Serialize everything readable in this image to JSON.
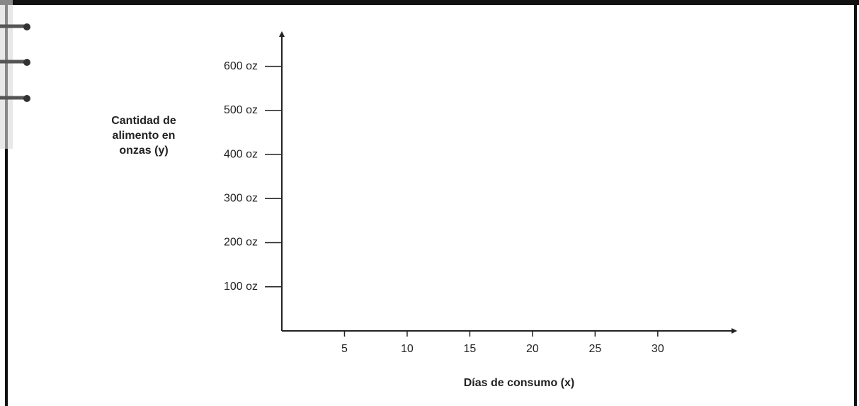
{
  "chart_data": {
    "type": "line",
    "y_label": "Cantidad de alimento en onzas (y)",
    "x_label": "Días de consumo (x)",
    "xlim": [
      0,
      36
    ],
    "xticks": [
      5,
      10,
      15,
      20,
      25,
      30
    ],
    "ylim": [
      0,
      670
    ],
    "yticks": [
      {
        "value": 100,
        "label": "100 oz"
      },
      {
        "value": 200,
        "label": "200 oz"
      },
      {
        "value": 300,
        "label": "300 oz"
      },
      {
        "value": 400,
        "label": "400 oz"
      },
      {
        "value": 500,
        "label": "500 oz"
      },
      {
        "value": 600,
        "label": "600 oz"
      }
    ],
    "series": []
  }
}
